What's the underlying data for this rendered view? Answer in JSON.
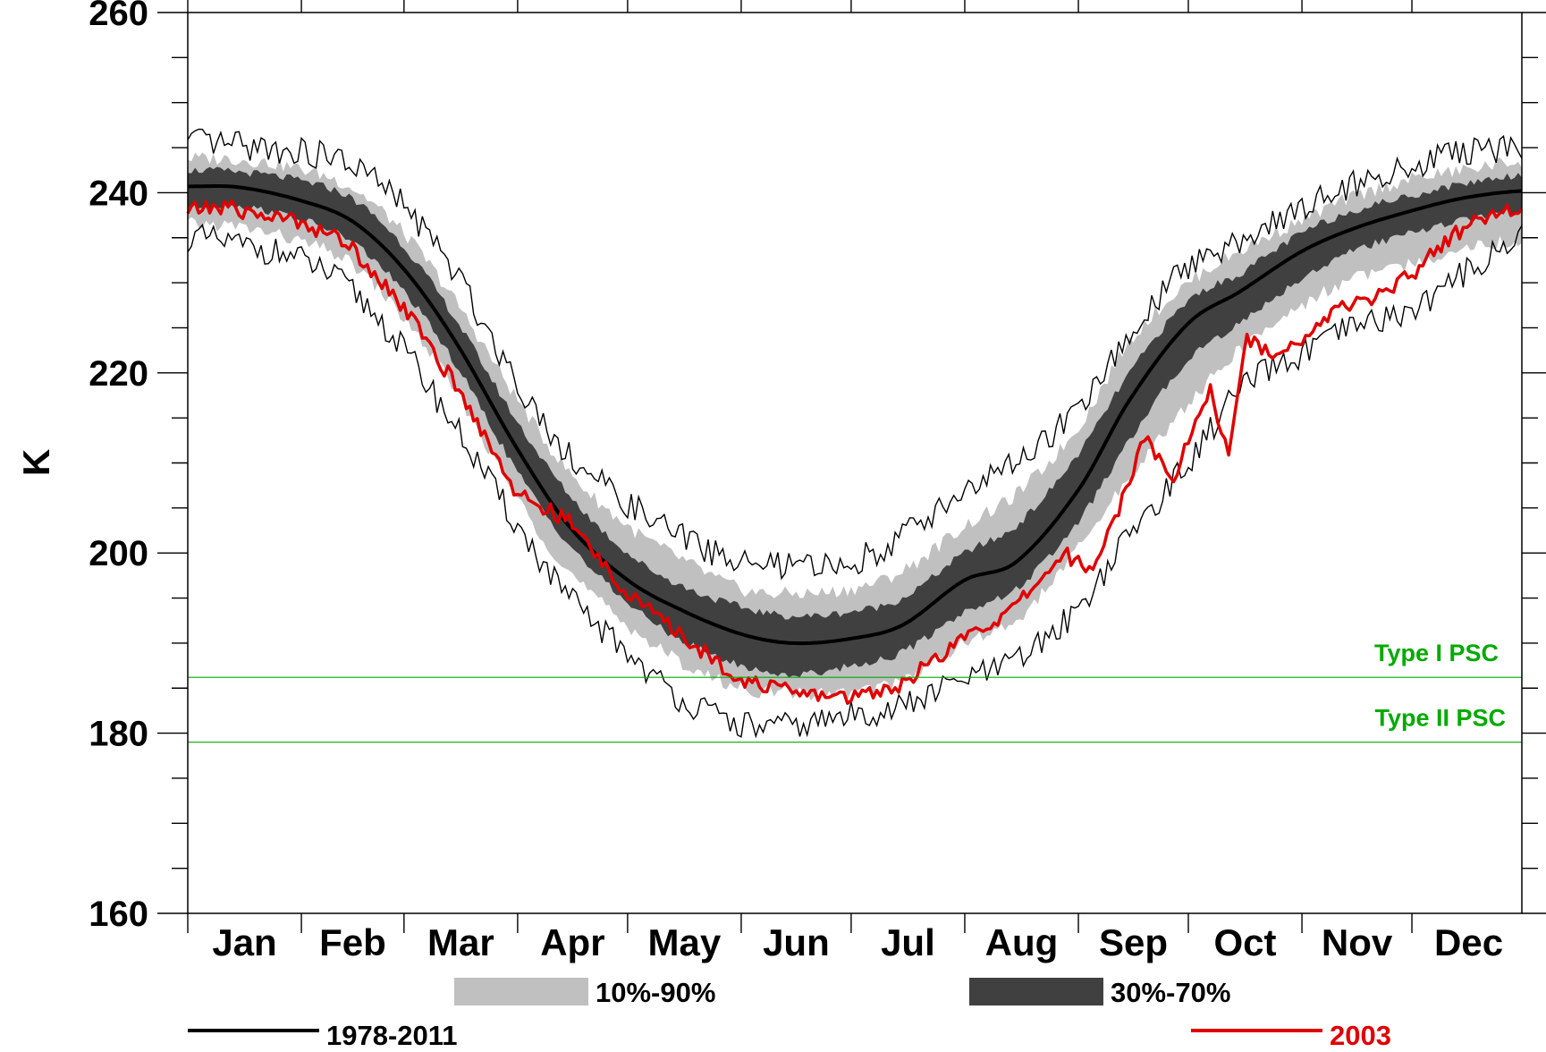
{
  "chart_data": {
    "type": "line",
    "title": "",
    "ylabel": "K",
    "xlabel": "",
    "ylim": [
      160,
      260
    ],
    "yticks": [
      "160",
      "180",
      "200",
      "220",
      "240",
      "260"
    ],
    "categories": [
      "Jan",
      "Feb",
      "Mar",
      "Apr",
      "May",
      "Jun",
      "Jul",
      "Aug",
      "Sep",
      "Oct",
      "Nov",
      "Dec"
    ],
    "month_days": [
      31,
      28,
      31,
      30,
      31,
      30,
      31,
      31,
      30,
      31,
      30,
      31
    ],
    "grid": false,
    "colors": {
      "p10_90": "#c0c0c0",
      "p30_70": "#404040",
      "mean": "#000000",
      "extremes": "#000000",
      "year": "#e00000",
      "psc": "#00aa00"
    },
    "climatology": {
      "day": [
        1,
        15,
        32,
        46,
        60,
        74,
        91,
        105,
        121,
        135,
        152,
        166,
        182,
        196,
        213,
        227,
        244,
        258,
        274,
        288,
        305,
        319,
        335,
        349,
        365
      ],
      "mean": [
        240.7,
        240.6,
        239.1,
        236.8,
        231.5,
        223.5,
        211.5,
        203.0,
        197.0,
        193.8,
        191.0,
        190.0,
        190.5,
        192.0,
        197.0,
        199.0,
        207.0,
        217.0,
        225.5,
        229.0,
        233.5,
        236.0,
        238.0,
        239.4,
        240.2
      ],
      "p10_90": [
        [
          236.5,
          243.8
        ],
        [
          236.2,
          243.7
        ],
        [
          234.5,
          242.6
        ],
        [
          232.0,
          240.5
        ],
        [
          226.0,
          235.5
        ],
        [
          218.0,
          228.0
        ],
        [
          206.0,
          217.0
        ],
        [
          198.0,
          209.0
        ],
        [
          192.0,
          203.0
        ],
        [
          188.0,
          199.5
        ],
        [
          185.0,
          196.0
        ],
        [
          184.5,
          195.5
        ],
        [
          184.5,
          196.0
        ],
        [
          186.0,
          198.0
        ],
        [
          190.0,
          203.0
        ],
        [
          192.5,
          206.5
        ],
        [
          200.5,
          214.0
        ],
        [
          208.5,
          223.5
        ],
        [
          216.5,
          230.0
        ],
        [
          222.5,
          233.5
        ],
        [
          227.5,
          237.0
        ],
        [
          230.5,
          239.5
        ],
        [
          232.0,
          241.5
        ],
        [
          234.0,
          242.5
        ],
        [
          234.5,
          243.5
        ]
      ],
      "p30_70": [
        [
          238.5,
          242.5
        ],
        [
          238.5,
          242.3
        ],
        [
          237.0,
          241.3
        ],
        [
          234.5,
          239.3
        ],
        [
          229.0,
          234.0
        ],
        [
          221.0,
          226.0
        ],
        [
          209.0,
          214.5
        ],
        [
          201.0,
          206.5
        ],
        [
          194.5,
          200.0
        ],
        [
          190.5,
          196.5
        ],
        [
          187.5,
          194.0
        ],
        [
          186.5,
          193.0
        ],
        [
          187.5,
          193.5
        ],
        [
          189.0,
          195.0
        ],
        [
          193.5,
          200.0
        ],
        [
          196.0,
          203.0
        ],
        [
          203.5,
          211.0
        ],
        [
          212.5,
          220.0
        ],
        [
          221.5,
          228.0
        ],
        [
          225.5,
          231.0
        ],
        [
          230.5,
          235.5
        ],
        [
          233.5,
          238.0
        ],
        [
          235.5,
          239.7
        ],
        [
          237.0,
          241.0
        ],
        [
          238.0,
          242.0
        ]
      ],
      "min": [
        235.0,
        234.2,
        232.5,
        229.0,
        222.5,
        214.0,
        203.0,
        195.0,
        189.0,
        184.0,
        181.0,
        180.8,
        182.0,
        183.0,
        186.0,
        188.0,
        194.0,
        202.0,
        210.0,
        218.0,
        222.0,
        225.0,
        227.0,
        231.0,
        235.0
      ],
      "max": [
        245.5,
        245.2,
        244.5,
        243.0,
        238.5,
        231.0,
        219.0,
        211.0,
        205.5,
        202.0,
        199.0,
        198.5,
        199.0,
        202.0,
        207.0,
        210.0,
        216.0,
        224.0,
        232.0,
        234.5,
        238.5,
        241.0,
        243.0,
        244.5,
        245.0
      ]
    },
    "year_2003": {
      "day": [
        1,
        10,
        20,
        32,
        45,
        55,
        60,
        70,
        80,
        91,
        105,
        121,
        135,
        152,
        166,
        182,
        196,
        206,
        213,
        227,
        240,
        248,
        255,
        262,
        270,
        274,
        280,
        285,
        290,
        296,
        305,
        315,
        325,
        335,
        345,
        355,
        365
      ],
      "values": [
        238.0,
        238.5,
        237.6,
        236.8,
        234.3,
        229.7,
        227.2,
        221.2,
        214.6,
        206.5,
        203.5,
        195.5,
        191.0,
        186.0,
        184.5,
        184.0,
        185.5,
        188.5,
        190.5,
        194.0,
        200.0,
        198.0,
        205.0,
        213.0,
        208.0,
        213.0,
        218.0,
        211.0,
        224.0,
        222.0,
        224.0,
        227.0,
        228.5,
        231.0,
        235.0,
        237.5,
        238.0
      ]
    },
    "thresholds": [
      {
        "label": "Type I PSC",
        "value": 186.2
      },
      {
        "label": "Type II PSC",
        "value": 179.0
      }
    ],
    "legend": [
      {
        "key": "p10_90",
        "label": "10%-90%"
      },
      {
        "key": "p30_70",
        "label": "30%-70%"
      },
      {
        "key": "mean",
        "label": "1978-2011"
      },
      {
        "key": "year",
        "label": "2003"
      }
    ]
  }
}
